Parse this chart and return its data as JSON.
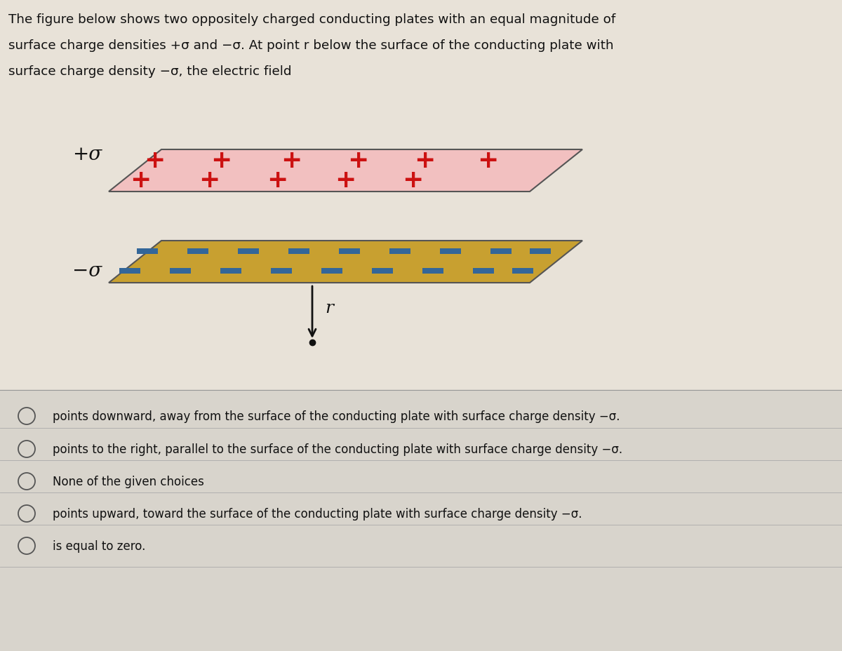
{
  "title_text_line1": "The figure below shows two oppositely charged conducting plates with an equal magnitude of",
  "title_text_line2": "surface charge densities +σ and −σ. At point r below the surface of the conducting plate with",
  "title_text_line3": "surface charge density −σ, the electric field",
  "bg_upper": "#e8e2d8",
  "bg_lower": "#d8d4cc",
  "plate_top_color": "#f2c0c0",
  "plate_top_edge": "#555555",
  "plate_bottom_color": "#c8a030",
  "plate_bottom_edge": "#555555",
  "plus_color": "#cc1111",
  "minus_color": "#336699",
  "arrow_color": "#111111",
  "label_sigma_plus": "+σ",
  "label_sigma_minus": "−σ",
  "choices": [
    "points downward, away from the surface of the conducting plate with surface charge density −σ.",
    "points to the right, parallel to the surface of the conducting plate with surface charge density −σ.",
    "None of the given choices",
    "points upward, toward the surface of the conducting plate with surface charge density −σ.",
    "is equal to zero."
  ],
  "figure_bg": "#e8e2d8"
}
